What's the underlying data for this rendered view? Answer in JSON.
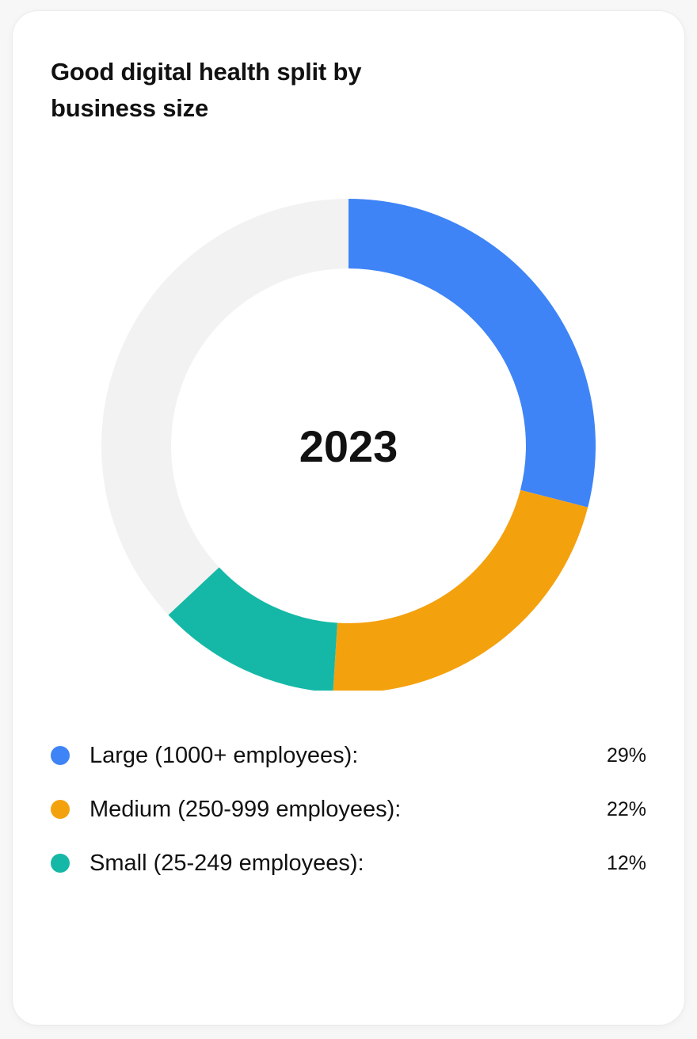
{
  "chart_data": {
    "type": "pie",
    "title": "Good digital health split by business size",
    "center_label": "2023",
    "total": 100,
    "remainder_color": "#f2f2f2",
    "series": [
      {
        "name": "Large (1000+ employees):",
        "value": 29,
        "value_label": "29%",
        "color": "#3e84f6"
      },
      {
        "name": "Medium (250-999 employees):",
        "value": 22,
        "value_label": "22%",
        "color": "#f4a10e"
      },
      {
        "name": "Small (25-249 employees):",
        "value": 12,
        "value_label": "12%",
        "color": "#15b8a6"
      }
    ],
    "legend_position": "bottom"
  }
}
